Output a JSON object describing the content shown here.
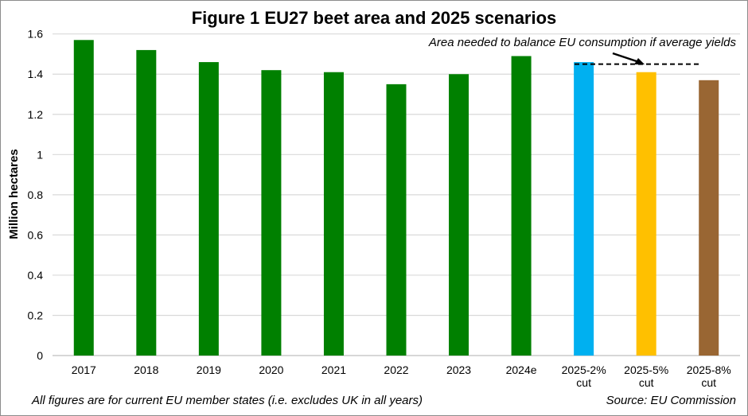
{
  "chart_data": {
    "type": "bar",
    "title": "Figure 1  EU27 beet area and 2025 scenarios",
    "xlabel": "",
    "ylabel": "Million hectares",
    "ylim": [
      0,
      1.6
    ],
    "yticks": [
      "0",
      "0.2",
      "0.4",
      "0.6",
      "0.8",
      "1",
      "1.2",
      "1.4",
      "1.6"
    ],
    "grid": true,
    "categories": [
      [
        "2017"
      ],
      [
        "2018"
      ],
      [
        "2019"
      ],
      [
        "2020"
      ],
      [
        "2021"
      ],
      [
        "2022"
      ],
      [
        "2023"
      ],
      [
        "2024e"
      ],
      [
        "2025-2%",
        "cut"
      ],
      [
        "2025-5%",
        "cut"
      ],
      [
        "2025-8%",
        "cut"
      ]
    ],
    "values": [
      1.57,
      1.52,
      1.46,
      1.42,
      1.41,
      1.35,
      1.4,
      1.49,
      1.46,
      1.41,
      1.37
    ],
    "colors": [
      "#008000",
      "#008000",
      "#008000",
      "#008000",
      "#008000",
      "#008000",
      "#008000",
      "#008000",
      "#00B0F0",
      "#FFC000",
      "#996633"
    ],
    "reference_line": {
      "value": 1.45,
      "label": "Area needed to balance EU consumption if average yields"
    },
    "footnote": "All figures are for current EU member states (i.e. excludes UK in all years)",
    "source": "Source: EU Commission"
  }
}
